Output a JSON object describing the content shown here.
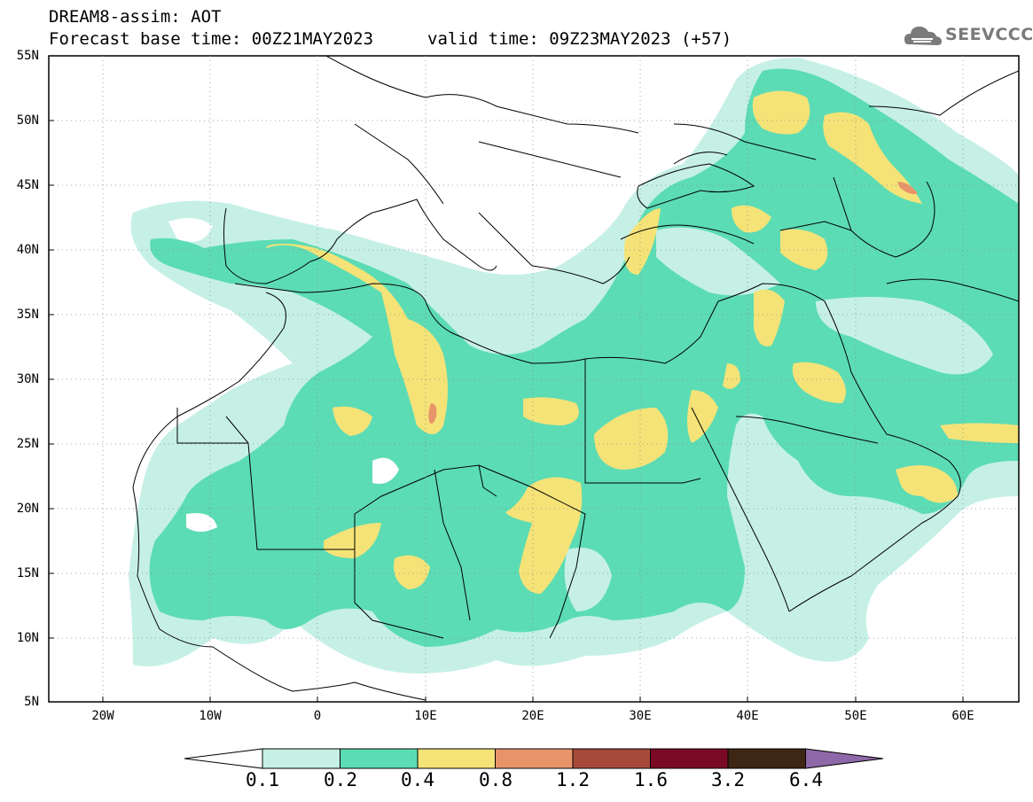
{
  "header": {
    "title_line1": "DREAM8-assim: AOT",
    "forecast_base_time": "Forecast base time: 00Z21MAY2023",
    "valid_time": "valid time: 09Z23MAY2023 (+57)"
  },
  "logo": {
    "text": "SEEVCCC",
    "icon": "cloud-icon"
  },
  "axes": {
    "lat_labels": [
      "55N",
      "50N",
      "45N",
      "40N",
      "35N",
      "30N",
      "25N",
      "20N",
      "15N",
      "10N",
      "5N"
    ],
    "lon_labels": [
      "20W",
      "10W",
      "0",
      "10E",
      "20E",
      "30E",
      "40E",
      "50E",
      "60E"
    ]
  },
  "colorbar": {
    "labels": [
      "0.1",
      "0.2",
      "0.4",
      "0.8",
      "1.2",
      "1.6",
      "3.2",
      "6.4"
    ],
    "colors": [
      "#ffffff",
      "#c6f0e6",
      "#5cdcb4",
      "#f5e378",
      "#e8946a",
      "#a74a3c",
      "#7a0a24",
      "#3d2614",
      "#8e68a8"
    ]
  },
  "legend_colors": {
    "level_0_1": "#c6f0e6",
    "level_0_2": "#5cdcb4",
    "level_0_4": "#f5e378",
    "level_0_8": "#e8946a"
  }
}
